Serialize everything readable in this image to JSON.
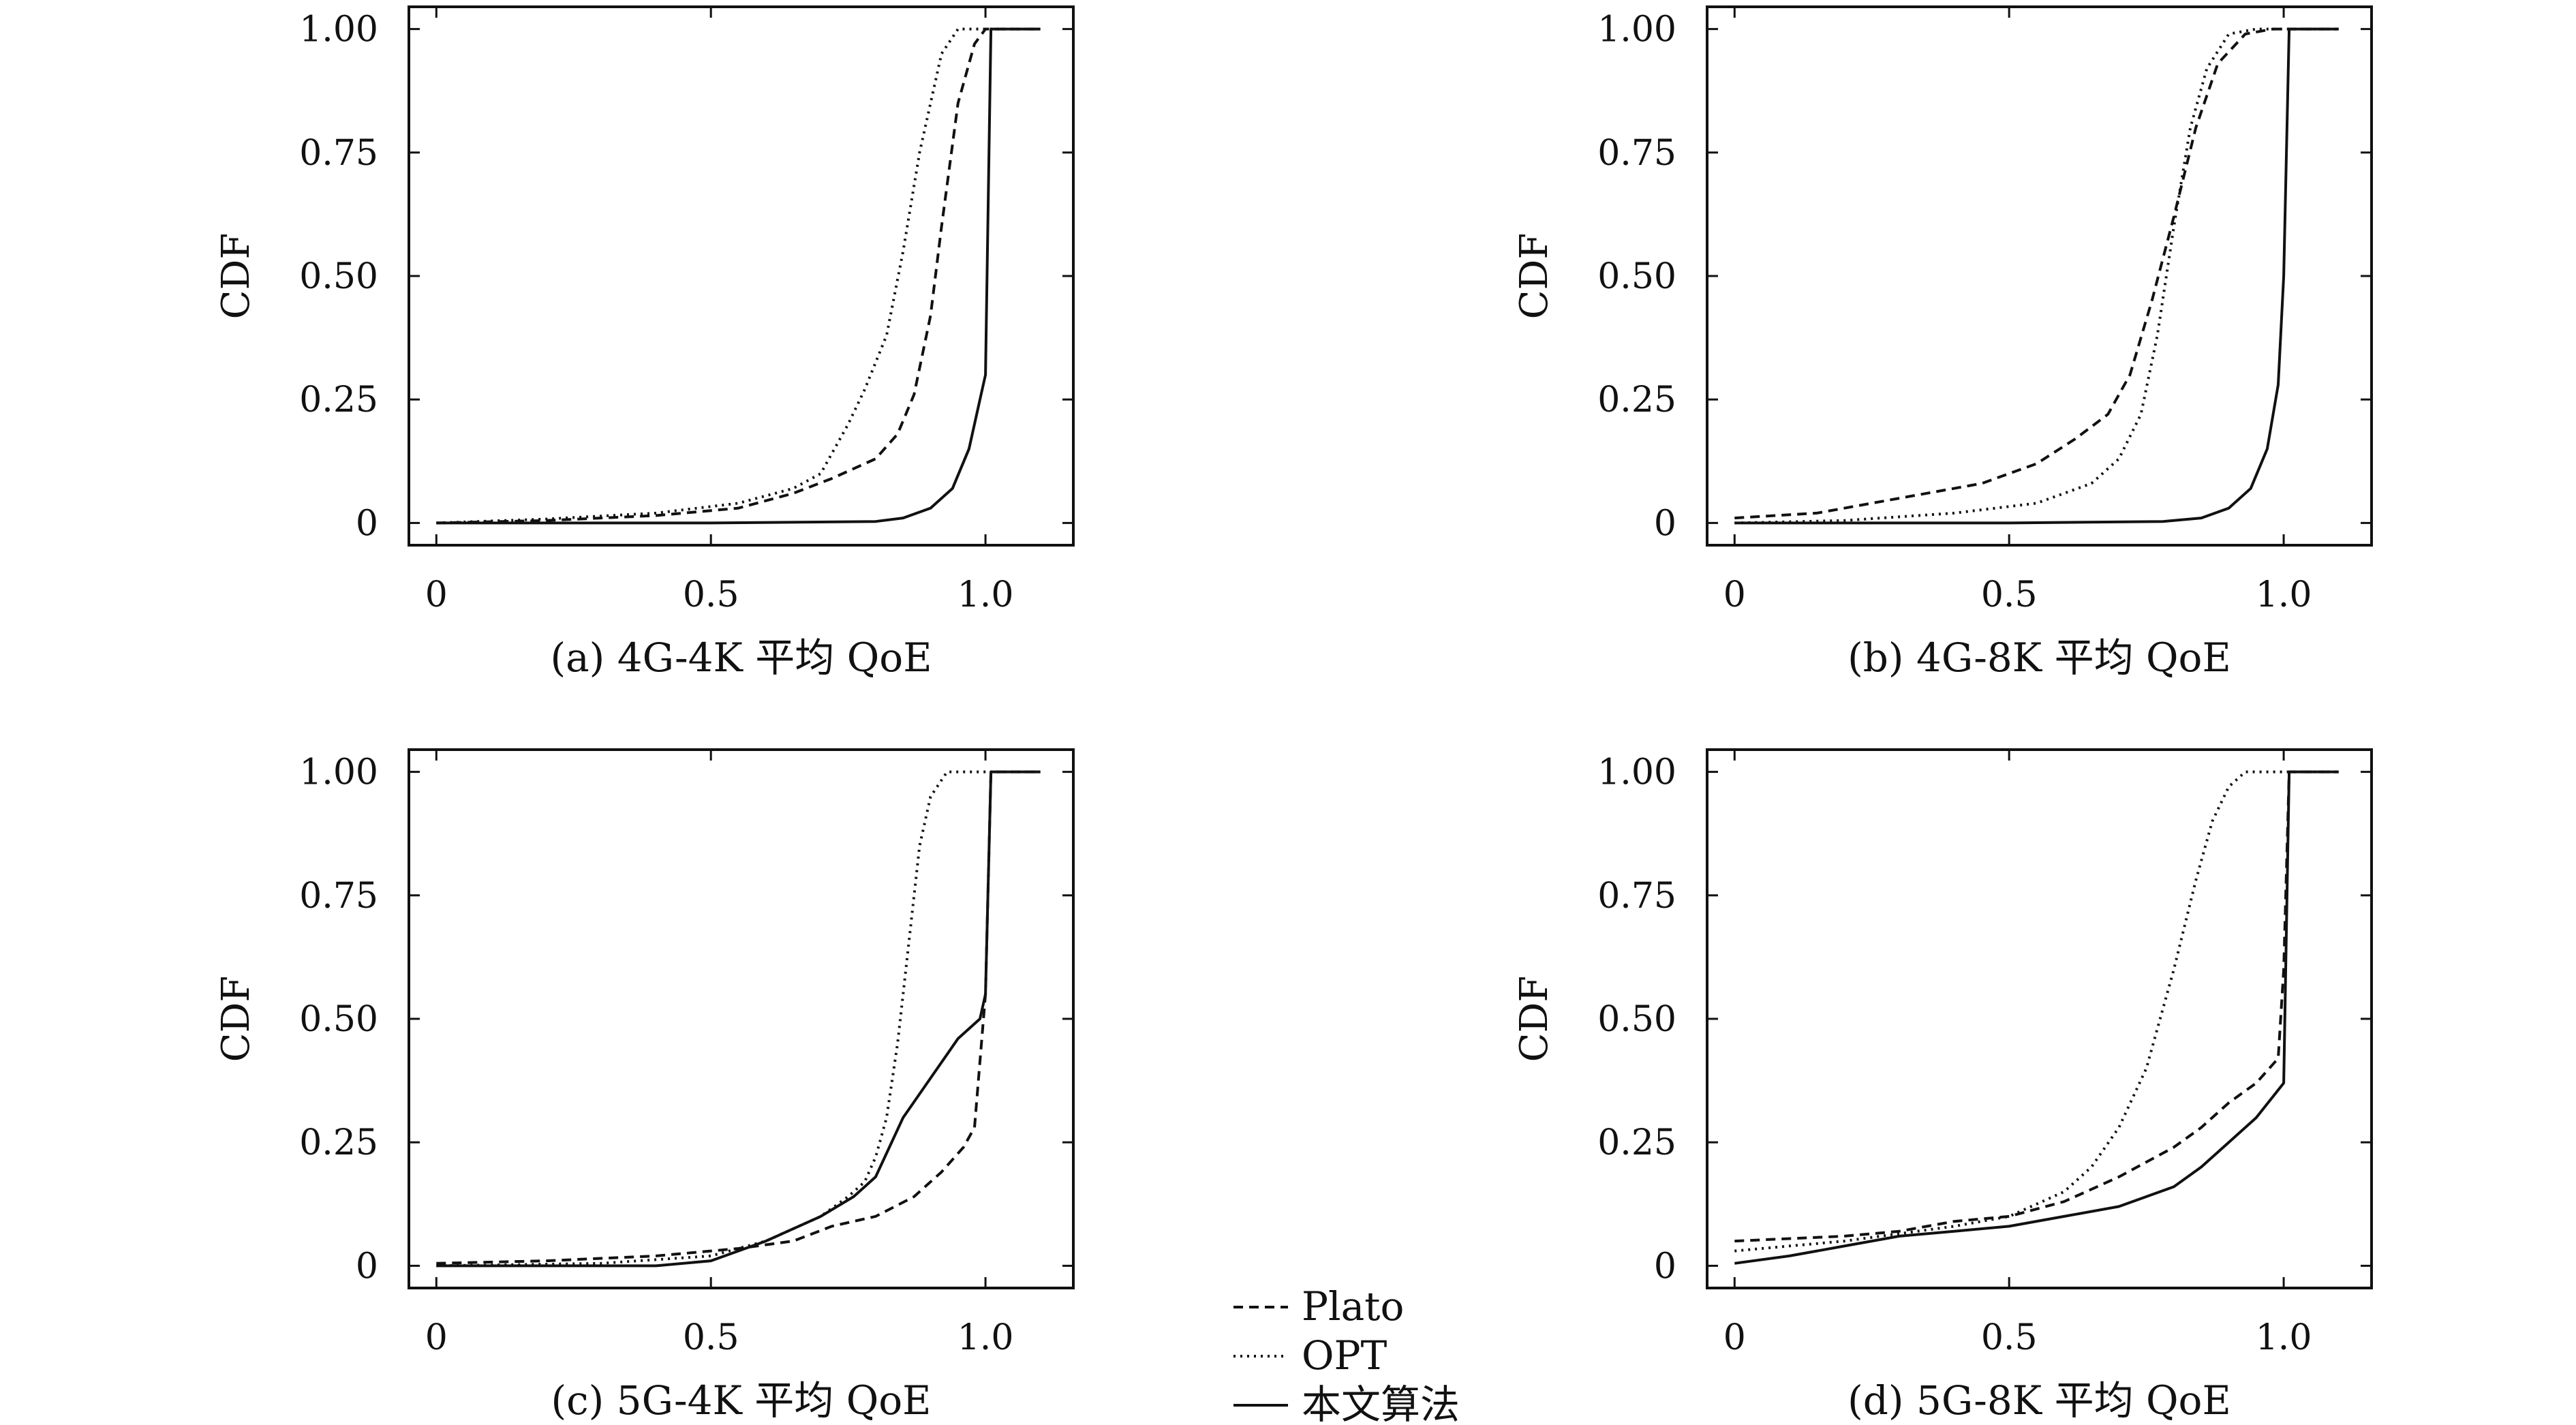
{
  "figure": {
    "legend": [
      {
        "name": "Plato",
        "style": "dashed"
      },
      {
        "name": "OPT",
        "style": "dotted"
      },
      {
        "name": "本文算法",
        "style": "solid"
      }
    ]
  },
  "chart_data": [
    {
      "type": "line",
      "caption": "(a) 4G-4K 平均 QoE",
      "ylabel": "CDF",
      "xlim": [
        -0.05,
        1.16
      ],
      "ylim": [
        -0.045,
        1.045
      ],
      "xticks": [
        "0",
        "0.5",
        "1.0"
      ],
      "xtick_values": [
        0,
        0.5,
        1.0
      ],
      "yticks": [
        "0",
        "0.25",
        "0.50",
        "0.75",
        "1.00"
      ],
      "ytick_values": [
        0,
        0.25,
        0.5,
        0.75,
        1.0
      ],
      "series": [
        {
          "name": "Plato",
          "style": "dashed",
          "x": [
            0,
            0.2,
            0.4,
            0.55,
            0.65,
            0.72,
            0.8,
            0.84,
            0.87,
            0.9,
            0.92,
            0.95,
            0.98,
            1.0,
            1.1
          ],
          "y": [
            0,
            0.005,
            0.015,
            0.03,
            0.06,
            0.09,
            0.13,
            0.18,
            0.26,
            0.42,
            0.6,
            0.85,
            0.97,
            1.0,
            1.0
          ]
        },
        {
          "name": "OPT",
          "style": "dotted",
          "x": [
            0,
            0.2,
            0.4,
            0.55,
            0.65,
            0.7,
            0.75,
            0.78,
            0.82,
            0.85,
            0.88,
            0.92,
            0.95,
            1.1
          ],
          "y": [
            0,
            0.008,
            0.02,
            0.04,
            0.07,
            0.1,
            0.2,
            0.27,
            0.38,
            0.55,
            0.75,
            0.95,
            1.0,
            1.0
          ]
        },
        {
          "name": "本文算法",
          "style": "solid",
          "x": [
            0,
            0.5,
            0.8,
            0.85,
            0.9,
            0.94,
            0.97,
            0.99,
            1.0,
            1.01,
            1.1
          ],
          "y": [
            0,
            0,
            0.003,
            0.01,
            0.03,
            0.07,
            0.15,
            0.25,
            0.3,
            1.0,
            1.0
          ]
        }
      ]
    },
    {
      "type": "line",
      "caption": "(b) 4G-8K 平均 QoE",
      "ylabel": "CDF",
      "xlim": [
        -0.05,
        1.16
      ],
      "ylim": [
        -0.045,
        1.045
      ],
      "xticks": [
        "0",
        "0.5",
        "1.0"
      ],
      "xtick_values": [
        0,
        0.5,
        1.0
      ],
      "yticks": [
        "0",
        "0.25",
        "0.50",
        "0.75",
        "1.00"
      ],
      "ytick_values": [
        0,
        0.25,
        0.5,
        0.75,
        1.0
      ],
      "series": [
        {
          "name": "Plato",
          "style": "dashed",
          "x": [
            0,
            0.15,
            0.3,
            0.45,
            0.55,
            0.62,
            0.68,
            0.72,
            0.76,
            0.8,
            0.84,
            0.88,
            0.93,
            0.98,
            1.1
          ],
          "y": [
            0.01,
            0.02,
            0.05,
            0.08,
            0.12,
            0.17,
            0.22,
            0.3,
            0.45,
            0.62,
            0.8,
            0.93,
            0.99,
            1.0,
            1.0
          ]
        },
        {
          "name": "OPT",
          "style": "dotted",
          "x": [
            0,
            0.2,
            0.4,
            0.55,
            0.65,
            0.7,
            0.74,
            0.77,
            0.8,
            0.83,
            0.86,
            0.9,
            0.95,
            1.1
          ],
          "y": [
            0,
            0.005,
            0.02,
            0.04,
            0.08,
            0.13,
            0.22,
            0.38,
            0.6,
            0.8,
            0.92,
            0.99,
            1.0,
            1.0
          ]
        },
        {
          "name": "本文算法",
          "style": "solid",
          "x": [
            0,
            0.5,
            0.78,
            0.85,
            0.9,
            0.94,
            0.97,
            0.99,
            1.0,
            1.01,
            1.1
          ],
          "y": [
            0,
            0,
            0.003,
            0.01,
            0.03,
            0.07,
            0.15,
            0.28,
            0.5,
            1.0,
            1.0
          ]
        }
      ]
    },
    {
      "type": "line",
      "caption": "(c) 5G-4K 平均 QoE",
      "ylabel": "CDF",
      "xlim": [
        -0.05,
        1.16
      ],
      "ylim": [
        -0.045,
        1.045
      ],
      "xticks": [
        "0",
        "0.5",
        "1.0"
      ],
      "xtick_values": [
        0,
        0.5,
        1.0
      ],
      "yticks": [
        "0",
        "0.25",
        "0.50",
        "0.75",
        "1.00"
      ],
      "ytick_values": [
        0,
        0.25,
        0.5,
        0.75,
        1.0
      ],
      "series": [
        {
          "name": "Plato",
          "style": "dashed",
          "x": [
            0,
            0.2,
            0.4,
            0.55,
            0.65,
            0.72,
            0.8,
            0.87,
            0.92,
            0.96,
            0.98,
            1.0,
            1.01,
            1.1
          ],
          "y": [
            0.005,
            0.01,
            0.02,
            0.035,
            0.05,
            0.08,
            0.1,
            0.14,
            0.19,
            0.24,
            0.28,
            0.55,
            1.0,
            1.0
          ]
        },
        {
          "name": "OPT",
          "style": "dotted",
          "x": [
            0,
            0.3,
            0.5,
            0.6,
            0.7,
            0.75,
            0.78,
            0.8,
            0.82,
            0.84,
            0.86,
            0.88,
            0.9,
            0.93,
            1.1
          ],
          "y": [
            0,
            0.005,
            0.02,
            0.05,
            0.1,
            0.14,
            0.17,
            0.22,
            0.3,
            0.45,
            0.65,
            0.85,
            0.95,
            1.0,
            1.0
          ]
        },
        {
          "name": "本文算法",
          "style": "solid",
          "x": [
            0,
            0.4,
            0.5,
            0.6,
            0.7,
            0.76,
            0.8,
            0.85,
            0.9,
            0.95,
            0.99,
            1.0,
            1.01,
            1.1
          ],
          "y": [
            0,
            0,
            0.01,
            0.05,
            0.1,
            0.14,
            0.18,
            0.3,
            0.38,
            0.46,
            0.5,
            0.55,
            1.0,
            1.0
          ]
        }
      ]
    },
    {
      "type": "line",
      "caption": "(d) 5G-8K 平均 QoE",
      "ylabel": "CDF",
      "xlim": [
        -0.05,
        1.16
      ],
      "ylim": [
        -0.045,
        1.045
      ],
      "xticks": [
        "0",
        "0.5",
        "1.0"
      ],
      "xtick_values": [
        0,
        0.5,
        1.0
      ],
      "yticks": [
        "0",
        "0.25",
        "0.50",
        "0.75",
        "1.00"
      ],
      "ytick_values": [
        0,
        0.25,
        0.5,
        0.75,
        1.0
      ],
      "series": [
        {
          "name": "Plato",
          "style": "dashed",
          "x": [
            0,
            0.1,
            0.2,
            0.3,
            0.4,
            0.5,
            0.6,
            0.7,
            0.8,
            0.85,
            0.9,
            0.95,
            0.99,
            1.0,
            1.01,
            1.1
          ],
          "y": [
            0.05,
            0.055,
            0.06,
            0.07,
            0.09,
            0.1,
            0.13,
            0.18,
            0.24,
            0.28,
            0.33,
            0.37,
            0.42,
            0.6,
            1.0,
            1.0
          ]
        },
        {
          "name": "OPT",
          "style": "dotted",
          "x": [
            0,
            0.2,
            0.4,
            0.5,
            0.6,
            0.65,
            0.7,
            0.75,
            0.8,
            0.84,
            0.87,
            0.9,
            0.93,
            1.1
          ],
          "y": [
            0.03,
            0.05,
            0.08,
            0.1,
            0.15,
            0.2,
            0.28,
            0.4,
            0.6,
            0.78,
            0.9,
            0.97,
            1.0,
            1.0
          ]
        },
        {
          "name": "本文算法",
          "style": "solid",
          "x": [
            0,
            0.1,
            0.2,
            0.3,
            0.4,
            0.5,
            0.6,
            0.7,
            0.8,
            0.85,
            0.9,
            0.95,
            1.0,
            1.01,
            1.1
          ],
          "y": [
            0.005,
            0.02,
            0.04,
            0.06,
            0.07,
            0.08,
            0.1,
            0.12,
            0.16,
            0.2,
            0.25,
            0.3,
            0.37,
            1.0,
            1.0
          ]
        }
      ]
    }
  ]
}
